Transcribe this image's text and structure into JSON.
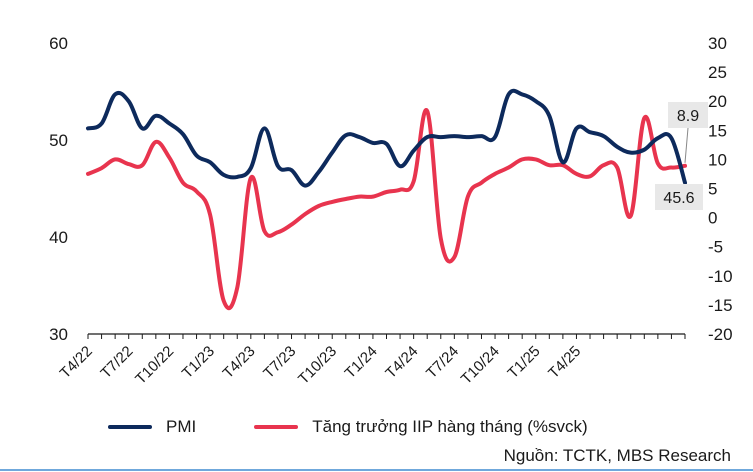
{
  "chart_data": {
    "type": "line",
    "x_labels": [
      "T4/22",
      "T7/22",
      "T10/22",
      "T1/23",
      "T4/23",
      "T7/23",
      "T10/23",
      "T1/24",
      "T4/24",
      "T7/24",
      "T10/24",
      "T1/25",
      "T4/25"
    ],
    "left_axis": {
      "min": 30,
      "max": 60,
      "ticks": [
        "60",
        "50",
        "40",
        "30"
      ]
    },
    "right_axis": {
      "min": -20,
      "max": 30,
      "ticks": [
        "30",
        "25",
        "20",
        "15",
        "10",
        "5",
        "0",
        "-5",
        "-10",
        "-15",
        "-20"
      ]
    },
    "series": [
      {
        "name": "PMI",
        "axis": "left",
        "color": "#0d2a5c",
        "values": [
          51.2,
          51.7,
          54.7,
          54.0,
          51.2,
          52.5,
          51.7,
          50.6,
          48.4,
          47.7,
          46.4,
          46.2,
          47.1,
          51.2,
          47.3,
          46.9,
          45.3,
          46.7,
          48.7,
          50.5,
          50.3,
          49.7,
          49.6,
          47.3,
          48.9,
          50.3,
          50.3,
          50.4,
          50.3,
          50.4,
          50.3,
          54.7,
          54.7,
          54.0,
          52.5,
          47.7,
          51.2,
          50.8,
          50.4,
          49.3,
          48.7,
          49.0,
          50.2,
          50.2,
          45.6
        ]
      },
      {
        "name": "Tăng trưởng IIP hàng tháng (%svck)",
        "axis": "right",
        "color": "#e8344e",
        "values": [
          7.5,
          8.5,
          10.0,
          9.2,
          9.0,
          13.0,
          10.3,
          6.0,
          4.5,
          0.5,
          -14.3,
          -12.0,
          6.8,
          -2.3,
          -2.5,
          -1.2,
          0.6,
          2.0,
          2.7,
          3.2,
          3.6,
          3.6,
          4.4,
          4.8,
          6.2,
          18.3,
          -3.6,
          -6.8,
          3.6,
          6.0,
          7.5,
          8.6,
          10.0,
          10.0,
          9.0,
          9.0,
          7.5,
          7.1,
          9.0,
          8.6,
          0.3,
          17.1,
          9.3,
          8.6,
          8.9
        ]
      }
    ],
    "annotations": [
      {
        "label": "8.9",
        "series": "Tăng trưởng IIP hàng tháng (%svck)",
        "value": 8.9
      },
      {
        "label": "45.6",
        "series": "PMI",
        "value": 45.6
      }
    ],
    "legend_position": "bottom",
    "grid": false
  },
  "legend": {
    "pmi_label": "PMI",
    "iip_label": "Tăng trưởng IIP hàng tháng (%svck)"
  },
  "source": "Nguồn: TCTK, MBS Research"
}
